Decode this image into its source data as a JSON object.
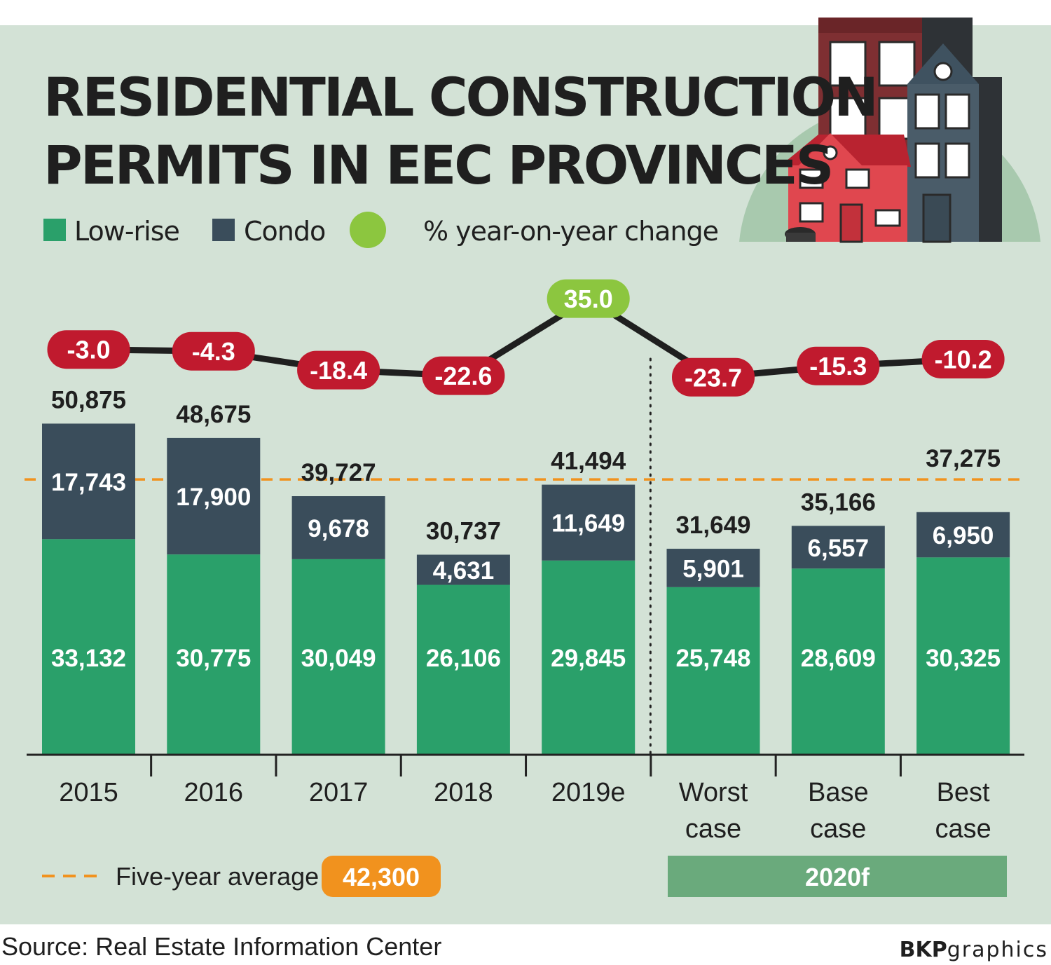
{
  "title": {
    "line1": "RESIDENTIAL CONSTRUCTION",
    "line2": "PERMITS IN EEC PROVINCES"
  },
  "legend": {
    "low_rise": "Low-rise",
    "condo": "Condo",
    "yoy": "% year-on-year change"
  },
  "colors": {
    "low_rise": "#2aa06a",
    "condo": "#3a4d5b",
    "positive": "#8cc63f",
    "negative": "#c01a2e",
    "average": "#f1921e",
    "panel": "#d3e2d6",
    "forecast_band": "#6aaa7c"
  },
  "chart_data": {
    "type": "bar",
    "stacked": true,
    "categories": [
      "2015",
      "2016",
      "2017",
      "2018",
      "2019e",
      "Worst case",
      "Base case",
      "Best case"
    ],
    "category_lines": [
      [
        "2015"
      ],
      [
        "2016"
      ],
      [
        "2017"
      ],
      [
        "2018"
      ],
      [
        "2019e"
      ],
      [
        "Worst",
        "case"
      ],
      [
        "Base",
        "case"
      ],
      [
        "Best",
        "case"
      ]
    ],
    "series": [
      {
        "name": "Low-rise",
        "values": [
          33132,
          30775,
          30049,
          26106,
          29845,
          25748,
          28609,
          30325
        ],
        "labels": [
          "33,132",
          "30,775",
          "30,049",
          "26,106",
          "29,845",
          "25,748",
          "28,609",
          "30,325"
        ]
      },
      {
        "name": "Condo",
        "values": [
          17743,
          17900,
          9678,
          4631,
          11649,
          5901,
          6557,
          6950
        ],
        "labels": [
          "17,743",
          "17,900",
          "9,678",
          "4,631",
          "11,649",
          "5,901",
          "6,557",
          "6,950"
        ]
      }
    ],
    "totals": [
      50875,
      48675,
      39727,
      30737,
      41494,
      31649,
      35166,
      37275
    ],
    "total_labels": [
      "50,875",
      "48,675",
      "39,727",
      "30,737",
      "41,494",
      "31,649",
      "35,166",
      "37,275"
    ],
    "yoy_change": [
      -3.0,
      -4.3,
      -18.4,
      -22.6,
      35.0,
      -23.7,
      -15.3,
      -10.2
    ],
    "yoy_labels": [
      "-3.0",
      "-4.3",
      "-18.4",
      "-22.6",
      "35.0",
      "-23.7",
      "-15.3",
      "-10.2"
    ],
    "average": {
      "label": "Five-year average",
      "value": 42300,
      "value_label": "42,300"
    },
    "forecast_group": {
      "label": "2020f",
      "categories": [
        "Worst case",
        "Base case",
        "Best case"
      ]
    },
    "ylim": [
      0,
      53000
    ],
    "legend_position": "top-left"
  },
  "source": "Source: Real Estate Information Center",
  "credit": {
    "bold": "BKP",
    "light": "graphics"
  }
}
